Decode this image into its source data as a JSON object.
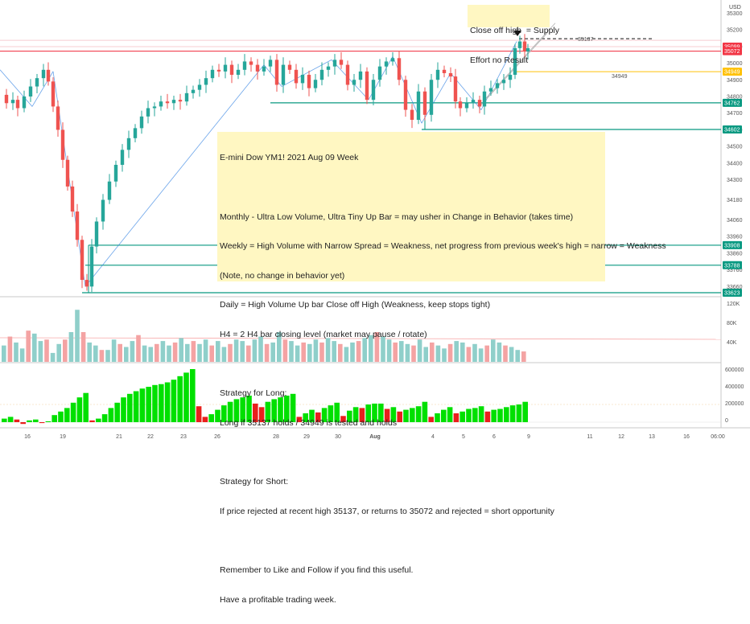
{
  "chart_data": {
    "type": "candlestick",
    "symbol_currency": "USD",
    "price_ticks": [
      35300,
      35200,
      35100,
      35000,
      34900,
      34800,
      34700,
      34600,
      34500,
      34400,
      34300,
      34180,
      34060,
      33960,
      33860,
      33760,
      33660
    ],
    "date_ticks": [
      "16",
      "19",
      "21",
      "22",
      "23",
      "26",
      "28",
      "29",
      "30",
      "Aug",
      "4",
      "5",
      "6",
      "9",
      "11",
      "12",
      "13",
      "16",
      "06:00"
    ],
    "volume_ticks": [
      "120K",
      "80K",
      "40K"
    ],
    "oscillator_ticks": [
      "600000",
      "400000",
      "200000",
      "0"
    ],
    "price_labels": [
      {
        "value": 35099,
        "text": "35099",
        "color": "#f23645"
      },
      {
        "value": 35072,
        "text": "35072",
        "color": "#f23645"
      },
      {
        "value": 34949,
        "text": "34949",
        "color": "#ffc107"
      },
      {
        "value": 34762,
        "text": "34762",
        "color": "#089981"
      },
      {
        "value": 34602,
        "text": "34602",
        "color": "#089981"
      },
      {
        "value": 33908,
        "text": "33908",
        "color": "#089981"
      },
      {
        "value": 33788,
        "text": "33788",
        "color": "#089981"
      },
      {
        "value": 33623,
        "text": "33623",
        "color": "#089981"
      }
    ],
    "inline_labels": [
      {
        "text": "35137",
        "value": 35137
      },
      {
        "text": "34949",
        "value": 34949
      }
    ],
    "path": [
      [
        0,
        34810
      ],
      [
        8,
        34760
      ],
      [
        16,
        34780
      ],
      [
        22,
        34730
      ],
      [
        30,
        34800
      ],
      [
        38,
        34860
      ],
      [
        46,
        34910
      ],
      [
        54,
        34960
      ],
      [
        60,
        34890
      ],
      [
        66,
        34740
      ],
      [
        72,
        34600
      ],
      [
        78,
        34420
      ],
      [
        84,
        34260
      ],
      [
        90,
        34110
      ],
      [
        96,
        33940
      ],
      [
        102,
        33700
      ],
      [
        108,
        33660
      ],
      [
        114,
        33900
      ],
      [
        120,
        34050
      ],
      [
        128,
        34180
      ],
      [
        136,
        34290
      ],
      [
        144,
        34390
      ],
      [
        152,
        34480
      ],
      [
        160,
        34550
      ],
      [
        168,
        34610
      ],
      [
        176,
        34680
      ],
      [
        184,
        34730
      ],
      [
        192,
        34740
      ],
      [
        200,
        34770
      ],
      [
        208,
        34760
      ],
      [
        216,
        34780
      ],
      [
        224,
        34770
      ],
      [
        232,
        34820
      ],
      [
        240,
        34840
      ],
      [
        248,
        34870
      ],
      [
        256,
        34910
      ],
      [
        264,
        34960
      ],
      [
        272,
        34950
      ],
      [
        280,
        34990
      ],
      [
        288,
        34930
      ],
      [
        296,
        34960
      ],
      [
        304,
        35010
      ],
      [
        312,
        34990
      ],
      [
        320,
        34950
      ],
      [
        328,
        34980
      ],
      [
        336,
        35020
      ],
      [
        344,
        34870
      ],
      [
        352,
        34990
      ],
      [
        360,
        34960
      ],
      [
        368,
        34880
      ],
      [
        376,
        34930
      ],
      [
        384,
        34850
      ],
      [
        392,
        34900
      ],
      [
        400,
        34960
      ],
      [
        408,
        34980
      ],
      [
        416,
        35020
      ],
      [
        424,
        34990
      ],
      [
        432,
        34870
      ],
      [
        440,
        34900
      ],
      [
        448,
        34950
      ],
      [
        456,
        34780
      ],
      [
        464,
        34900
      ],
      [
        472,
        34980
      ],
      [
        480,
        35010
      ],
      [
        488,
        35030
      ],
      [
        496,
        34900
      ],
      [
        504,
        34720
      ],
      [
        512,
        34660
      ],
      [
        520,
        34830
      ],
      [
        528,
        34690
      ],
      [
        536,
        34900
      ],
      [
        544,
        34960
      ],
      [
        552,
        34940
      ],
      [
        560,
        34920
      ],
      [
        566,
        34770
      ],
      [
        572,
        34730
      ],
      [
        580,
        34760
      ],
      [
        588,
        34780
      ],
      [
        596,
        34740
      ],
      [
        602,
        34830
      ],
      [
        610,
        34850
      ],
      [
        618,
        34880
      ],
      [
        626,
        34900
      ],
      [
        634,
        34930
      ],
      [
        640,
        35090
      ],
      [
        646,
        35130
      ],
      [
        652,
        35070
      ],
      [
        656,
        35090
      ]
    ],
    "volume": [
      22,
      34,
      26,
      18,
      42,
      38,
      28,
      30,
      12,
      24,
      30,
      40,
      70,
      40,
      26,
      22,
      16,
      16,
      30,
      24,
      20,
      28,
      36,
      22,
      20,
      24,
      28,
      22,
      26,
      32,
      24,
      28,
      24,
      30,
      22,
      28,
      20,
      24,
      30,
      28,
      22,
      30,
      34,
      24,
      26,
      40,
      30,
      28,
      22,
      26,
      24,
      30,
      26,
      32,
      28,
      24,
      20,
      26,
      28,
      32,
      36,
      40,
      34,
      30,
      26,
      28,
      24,
      22,
      30,
      20,
      26,
      22,
      18,
      24,
      28,
      26,
      20,
      24,
      18,
      22,
      30,
      26,
      22,
      20,
      16,
      14
    ],
    "oscillator": [
      40000,
      60000,
      30000,
      -20000,
      20000,
      30000,
      -10000,
      10000,
      80000,
      120000,
      160000,
      220000,
      280000,
      330000,
      20000,
      40000,
      90000,
      160000,
      220000,
      280000,
      320000,
      350000,
      380000,
      400000,
      420000,
      430000,
      450000,
      480000,
      520000,
      560000,
      600000,
      180000,
      60000,
      90000,
      140000,
      190000,
      230000,
      260000,
      280000,
      300000,
      210000,
      170000,
      230000,
      260000,
      280000,
      300000,
      320000,
      60000,
      100000,
      140000,
      110000,
      160000,
      190000,
      220000,
      70000,
      130000,
      170000,
      160000,
      200000,
      210000,
      210000,
      150000,
      170000,
      120000,
      140000,
      160000,
      180000,
      230000,
      60000,
      100000,
      140000,
      170000,
      100000,
      120000,
      150000,
      160000,
      180000,
      120000,
      140000,
      150000,
      170000,
      190000,
      200000,
      230000
    ]
  },
  "notes": {
    "main": {
      "title": "E-mini Dow YM1! 2021 Aug 09 Week",
      "lines": [
        "",
        "Monthly - Ultra Low Volume, Ultra Tiny Up Bar = may usher in Change in Behavior (takes time)",
        "Weekly = High Volume with Narrow Spread = Weakness, net progress from previous week's high = narrow = Weakness",
        "(Note, no change in behavior yet)",
        "Daily = High Volume Up bar Close off High (Weakness, keep stops tight)",
        "H4 = 2 H4 bar closing level (market may pause / rotate)",
        "",
        "Strategy for Long:",
        "Long if 35137 holds / 34949 is tested and holds",
        "",
        "Strategy for Short:",
        "If price rejected at recent high 35137, or returns to 35072 and rejected = short opportunity",
        "",
        "Remember to Like and Follow if you find this useful.",
        "Have a profitable trading week."
      ]
    },
    "top": {
      "line1": "Close off high  = Supply",
      "line2": "Effort no Result"
    }
  },
  "colors": {
    "up": "#26a69a",
    "down": "#ef5350",
    "volume_up": "#8fcfca",
    "volume_down": "#f4a3a3",
    "osc_up": "#00e000",
    "osc_down": "#e8201c",
    "teal_line": "#089981",
    "yellow_line": "#ffc107",
    "red_line": "#f23645",
    "trend_line": "#2a7de1",
    "note_bg": "#fff7c2"
  }
}
